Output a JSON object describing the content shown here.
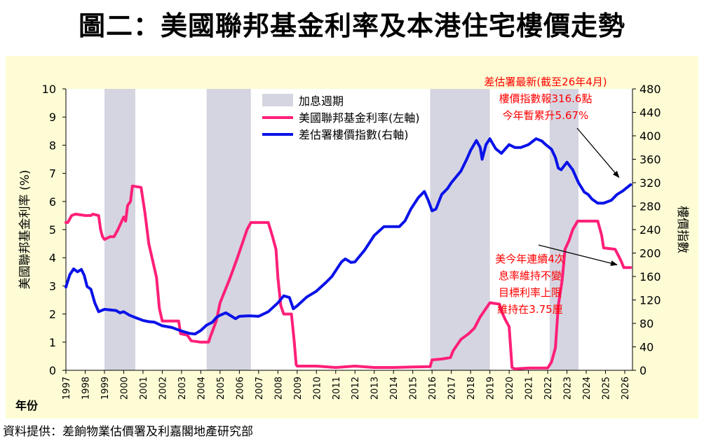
{
  "title": "圖二：美國聯邦基金利率及本港住宅樓價走勢",
  "source": "資料提供：差餉物業估價署及利嘉閣地產研究部",
  "colors": {
    "background": "#ffffff",
    "plot_bg": "#fdfcd5",
    "fed_rate": "#ff1f78",
    "price_index": "#0a12e8",
    "hike_band": "#d5d5e1",
    "annotation": "#ff0000"
  },
  "chart_data": {
    "type": "line",
    "title": "",
    "xlabel": "年份",
    "ylabel_left": "美國聯邦基金利率 (%)",
    "ylabel_right": "樓價指數",
    "x_range": [
      1997,
      2026.4
    ],
    "ylim_left": [
      0,
      10
    ],
    "ylim_right": [
      0,
      480
    ],
    "yticks_left": [
      0,
      1,
      2,
      3,
      4,
      5,
      6,
      7,
      8,
      9,
      10
    ],
    "yticks_right": [
      0,
      40,
      80,
      120,
      160,
      200,
      240,
      280,
      320,
      360,
      400,
      440,
      480
    ],
    "xticks": [
      "1997",
      "1998",
      "1999",
      "2000",
      "2001",
      "2002",
      "2003",
      "2004",
      "2005",
      "2006",
      "2007",
      "2008",
      "2009",
      "2010",
      "2011",
      "2012",
      "2013",
      "2014",
      "2015",
      "2016",
      "2017",
      "2018",
      "2019",
      "2020",
      "2021",
      "2022",
      "2023",
      "2024",
      "2025",
      "2026"
    ],
    "grid": false,
    "legend_placement": "top-center",
    "legend": [
      {
        "key": "hike",
        "label": "加息週期"
      },
      {
        "key": "fed",
        "label": "美國聯邦基金利率(左軸)"
      },
      {
        "key": "price",
        "label": "差估署樓價指數(右軸)"
      }
    ],
    "rate_hike_periods": [
      [
        1999.0,
        2000.6
      ],
      [
        2004.3,
        2006.6
      ],
      [
        2015.9,
        2019.0
      ],
      [
        2022.1,
        2023.6
      ]
    ],
    "series": [
      {
        "name": "美國聯邦基金利率(左軸)",
        "axis": "left",
        "points": [
          [
            1997.0,
            5.25
          ],
          [
            1997.1,
            5.25
          ],
          [
            1997.3,
            5.5
          ],
          [
            1997.5,
            5.55
          ],
          [
            1998.0,
            5.5
          ],
          [
            1998.3,
            5.5
          ],
          [
            1998.4,
            5.55
          ],
          [
            1998.7,
            5.5
          ],
          [
            1998.8,
            5.0
          ],
          [
            1998.9,
            4.75
          ],
          [
            1999.0,
            4.65
          ],
          [
            1999.3,
            4.75
          ],
          [
            1999.5,
            4.75
          ],
          [
            1999.7,
            5.0
          ],
          [
            2000.0,
            5.45
          ],
          [
            2000.1,
            5.3
          ],
          [
            2000.2,
            5.85
          ],
          [
            2000.35,
            6.0
          ],
          [
            2000.45,
            6.55
          ],
          [
            2000.9,
            6.5
          ],
          [
            2001.1,
            5.6
          ],
          [
            2001.3,
            4.5
          ],
          [
            2001.5,
            3.9
          ],
          [
            2001.7,
            3.3
          ],
          [
            2001.85,
            2.2
          ],
          [
            2002.0,
            1.75
          ],
          [
            2002.5,
            1.75
          ],
          [
            2002.85,
            1.75
          ],
          [
            2002.95,
            1.3
          ],
          [
            2003.3,
            1.25
          ],
          [
            2003.5,
            1.05
          ],
          [
            2004.0,
            1.0
          ],
          [
            2004.4,
            1.0
          ],
          [
            2004.5,
            1.2
          ],
          [
            2004.8,
            1.75
          ],
          [
            2005.0,
            2.4
          ],
          [
            2005.5,
            3.25
          ],
          [
            2005.9,
            4.0
          ],
          [
            2006.2,
            4.6
          ],
          [
            2006.4,
            5.0
          ],
          [
            2006.6,
            5.25
          ],
          [
            2007.5,
            5.25
          ],
          [
            2007.7,
            4.8
          ],
          [
            2007.9,
            4.3
          ],
          [
            2008.0,
            3.3
          ],
          [
            2008.15,
            2.3
          ],
          [
            2008.3,
            2.0
          ],
          [
            2008.7,
            2.0
          ],
          [
            2008.85,
            1.0
          ],
          [
            2008.95,
            0.2
          ],
          [
            2009.0,
            0.15
          ],
          [
            2010.0,
            0.15
          ],
          [
            2011.0,
            0.1
          ],
          [
            2012.0,
            0.15
          ],
          [
            2013.0,
            0.1
          ],
          [
            2014.0,
            0.1
          ],
          [
            2015.0,
            0.12
          ],
          [
            2015.9,
            0.13
          ],
          [
            2016.0,
            0.37
          ],
          [
            2016.5,
            0.4
          ],
          [
            2016.95,
            0.45
          ],
          [
            2017.1,
            0.7
          ],
          [
            2017.5,
            1.1
          ],
          [
            2017.9,
            1.3
          ],
          [
            2018.2,
            1.5
          ],
          [
            2018.5,
            1.9
          ],
          [
            2018.8,
            2.2
          ],
          [
            2019.0,
            2.4
          ],
          [
            2019.5,
            2.35
          ],
          [
            2019.6,
            2.1
          ],
          [
            2019.8,
            1.8
          ],
          [
            2020.0,
            1.55
          ],
          [
            2020.15,
            0.1
          ],
          [
            2020.3,
            0.05
          ],
          [
            2021.0,
            0.08
          ],
          [
            2022.0,
            0.08
          ],
          [
            2022.2,
            0.3
          ],
          [
            2022.4,
            0.8
          ],
          [
            2022.55,
            2.3
          ],
          [
            2022.75,
            3.2
          ],
          [
            2022.9,
            4.3
          ],
          [
            2023.1,
            4.6
          ],
          [
            2023.3,
            5.0
          ],
          [
            2023.55,
            5.3
          ],
          [
            2024.6,
            5.3
          ],
          [
            2024.8,
            4.8
          ],
          [
            2024.9,
            4.35
          ],
          [
            2025.5,
            4.3
          ],
          [
            2025.8,
            3.9
          ],
          [
            2025.95,
            3.65
          ],
          [
            2026.3,
            3.65
          ]
        ]
      },
      {
        "name": "差估署樓價指數(右軸)",
        "axis": "right",
        "points": [
          [
            1997.0,
            142
          ],
          [
            1997.2,
            163
          ],
          [
            1997.4,
            173
          ],
          [
            1997.6,
            168
          ],
          [
            1997.8,
            172
          ],
          [
            1997.95,
            162
          ],
          [
            1998.1,
            143
          ],
          [
            1998.3,
            138
          ],
          [
            1998.5,
            115
          ],
          [
            1998.7,
            100
          ],
          [
            1998.85,
            102
          ],
          [
            1999.0,
            104
          ],
          [
            1999.3,
            103
          ],
          [
            1999.6,
            102
          ],
          [
            1999.8,
            98
          ],
          [
            2000.0,
            100
          ],
          [
            2000.3,
            94
          ],
          [
            2000.6,
            90
          ],
          [
            2001.0,
            85
          ],
          [
            2001.3,
            83
          ],
          [
            2001.6,
            82
          ],
          [
            2002.0,
            76
          ],
          [
            2002.5,
            73
          ],
          [
            2003.0,
            67
          ],
          [
            2003.4,
            63
          ],
          [
            2003.7,
            62
          ],
          [
            2004.0,
            68
          ],
          [
            2004.3,
            77
          ],
          [
            2004.6,
            82
          ],
          [
            2004.8,
            90
          ],
          [
            2005.0,
            94
          ],
          [
            2005.3,
            98
          ],
          [
            2005.6,
            92
          ],
          [
            2005.8,
            88
          ],
          [
            2006.0,
            92
          ],
          [
            2006.5,
            93
          ],
          [
            2007.0,
            92
          ],
          [
            2007.5,
            100
          ],
          [
            2008.0,
            115
          ],
          [
            2008.3,
            127
          ],
          [
            2008.6,
            124
          ],
          [
            2008.8,
            105
          ],
          [
            2009.0,
            110
          ],
          [
            2009.5,
            125
          ],
          [
            2010.0,
            135
          ],
          [
            2010.5,
            150
          ],
          [
            2010.8,
            160
          ],
          [
            2011.0,
            170
          ],
          [
            2011.3,
            185
          ],
          [
            2011.5,
            190
          ],
          [
            2011.8,
            184
          ],
          [
            2012.0,
            185
          ],
          [
            2012.5,
            205
          ],
          [
            2013.0,
            230
          ],
          [
            2013.5,
            245
          ],
          [
            2013.8,
            245
          ],
          [
            2014.3,
            245
          ],
          [
            2014.6,
            255
          ],
          [
            2014.9,
            275
          ],
          [
            2015.3,
            295
          ],
          [
            2015.6,
            305
          ],
          [
            2015.8,
            290
          ],
          [
            2016.0,
            272
          ],
          [
            2016.2,
            275
          ],
          [
            2016.5,
            300
          ],
          [
            2016.8,
            310
          ],
          [
            2017.0,
            320
          ],
          [
            2017.5,
            340
          ],
          [
            2017.8,
            360
          ],
          [
            2018.0,
            375
          ],
          [
            2018.3,
            392
          ],
          [
            2018.5,
            380
          ],
          [
            2018.6,
            360
          ],
          [
            2018.8,
            385
          ],
          [
            2019.0,
            395
          ],
          [
            2019.3,
            378
          ],
          [
            2019.6,
            370
          ],
          [
            2020.0,
            385
          ],
          [
            2020.3,
            380
          ],
          [
            2020.6,
            380
          ],
          [
            2021.0,
            385
          ],
          [
            2021.4,
            395
          ],
          [
            2021.7,
            391
          ],
          [
            2021.9,
            385
          ],
          [
            2022.2,
            377
          ],
          [
            2022.4,
            363
          ],
          [
            2022.55,
            345
          ],
          [
            2022.7,
            342
          ],
          [
            2023.0,
            355
          ],
          [
            2023.3,
            342
          ],
          [
            2023.6,
            320
          ],
          [
            2023.9,
            304
          ],
          [
            2024.1,
            300
          ],
          [
            2024.3,
            292
          ],
          [
            2024.6,
            285
          ],
          [
            2024.9,
            285
          ],
          [
            2025.3,
            290
          ],
          [
            2025.6,
            300
          ],
          [
            2025.9,
            306
          ],
          [
            2026.3,
            316.6
          ]
        ]
      }
    ],
    "annotations": [
      {
        "lines": [
          "差估署最新(截至26年4月)",
          "樓價指數報316.6點",
          "今年暫累升5.67%"
        ],
        "arrow_to": [
          2025.7,
          329
        ]
      },
      {
        "lines": [
          "美今年連續4次",
          "息率維持不變",
          "目標利率上限",
          "維持在3.75厘"
        ],
        "arrow_to": [
          2025.6,
          3.75
        ]
      }
    ]
  }
}
